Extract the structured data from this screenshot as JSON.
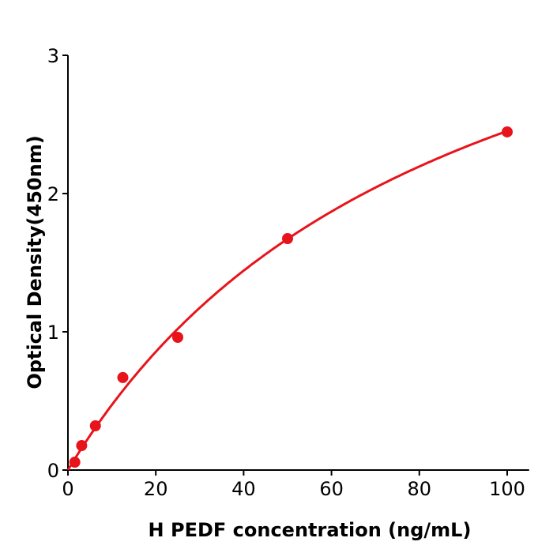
{
  "chart_data": {
    "type": "scatter",
    "title": "",
    "xlabel": "H  PEDF concentration (ng/mL)",
    "ylabel": "Optical Density(450nm)",
    "xlim": [
      0,
      105
    ],
    "ylim": [
      0,
      3
    ],
    "xticks": [
      "0",
      "20",
      "40",
      "60",
      "80",
      "100"
    ],
    "yticks": [
      "0",
      "1",
      "2",
      "3"
    ],
    "grid": false,
    "legend": "none",
    "color": "#e8141b",
    "series": [
      {
        "x": [
          1.56,
          3.125,
          6.25,
          12.5,
          25,
          50,
          100
        ],
        "y": [
          0.057,
          0.177,
          0.32,
          0.669,
          0.96,
          1.674,
          2.446
        ],
        "fit_curve": true
      }
    ]
  }
}
